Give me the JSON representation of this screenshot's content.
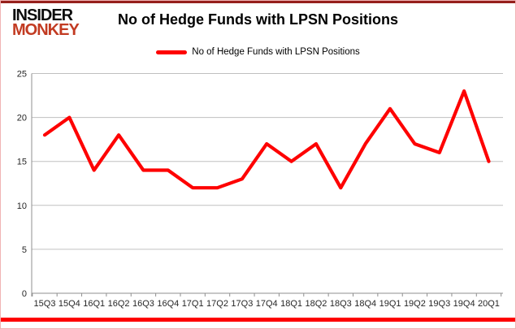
{
  "branding": {
    "logo_line1": "INSIDER",
    "logo_line2": "MONKEY"
  },
  "header": {
    "title": "No of Hedge Funds with LPSN Positions"
  },
  "legend": {
    "label": "No of Hedge Funds with LPSN Positions"
  },
  "chart_data": {
    "type": "line",
    "title": "No of Hedge Funds with LPSN Positions",
    "categories": [
      "15Q3",
      "15Q4",
      "16Q1",
      "16Q2",
      "16Q3",
      "16Q4",
      "17Q1",
      "17Q2",
      "17Q3",
      "17Q4",
      "18Q1",
      "18Q2",
      "18Q3",
      "18Q4",
      "19Q1",
      "19Q2",
      "19Q3",
      "19Q4",
      "20Q1"
    ],
    "series": [
      {
        "name": "No of Hedge Funds with LPSN Positions",
        "color": "#fe0000",
        "values": [
          18,
          20,
          14,
          18,
          14,
          14,
          12,
          12,
          13,
          17,
          15,
          17,
          12,
          17,
          21,
          17,
          16,
          23,
          15
        ]
      }
    ],
    "xlabel": "",
    "ylabel": "",
    "ylim": [
      0,
      25
    ],
    "yticks": [
      0,
      5,
      10,
      15,
      20,
      25
    ],
    "grid": true,
    "legend_position": "top"
  },
  "colors": {
    "line": "#fe0000",
    "logo_red": "#c23b22",
    "top_bar": "#96201c",
    "border_pink": "#f0b4b4",
    "grid": "#c0c0c0",
    "axis": "#8f8f8f",
    "label": "#262626"
  }
}
